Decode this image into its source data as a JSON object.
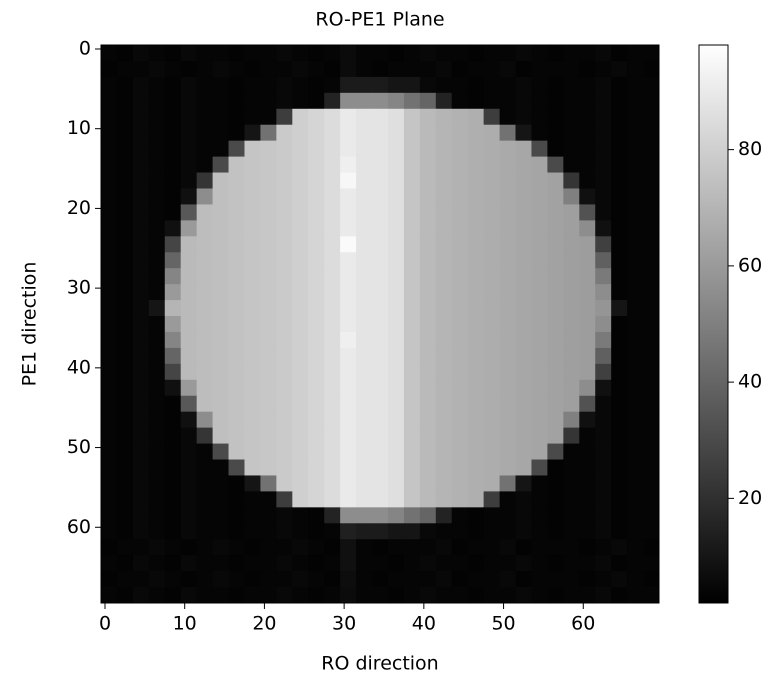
{
  "chart_data": {
    "type": "heatmap",
    "title": "RO-PE1 Plane",
    "x_label": "RO direction",
    "y_label": "PE1 direction",
    "colormap": "gray",
    "y_inverted": true,
    "xlim": [
      -0.5,
      69.5
    ],
    "ylim": [
      -0.5,
      69.5
    ],
    "xticks": [
      0,
      10,
      20,
      30,
      40,
      50,
      60
    ],
    "yticks": [
      0,
      10,
      20,
      30,
      40,
      50,
      60
    ],
    "clim": [
      2,
      98
    ],
    "cticks": [
      20,
      40,
      60,
      80
    ],
    "xbins": [
      -0.5,
      1.5,
      3.5,
      5.5,
      7.5,
      9.5,
      11.5,
      13.5,
      15.5,
      17.5,
      19.5,
      21.5,
      23.5,
      25.5,
      27.5,
      29.5,
      31.5,
      33.5,
      35.5,
      37.5,
      39.5,
      41.5,
      43.5,
      45.5,
      47.5,
      49.5,
      51.5,
      53.5,
      55.5,
      57.5,
      59.5,
      61.5,
      63.5,
      65.5,
      67.5,
      69.5
    ],
    "ybins": [
      -0.5,
      1.5,
      3.5,
      5.5,
      7.5,
      9.5,
      11.5,
      13.5,
      15.5,
      17.5,
      19.5,
      21.5,
      23.5,
      25.5,
      27.5,
      29.5,
      31.5,
      33.5,
      35.5,
      37.5,
      39.5,
      41.5,
      43.5,
      45.5,
      47.5,
      49.5,
      51.5,
      53.5,
      55.5,
      57.5,
      59.5,
      61.5,
      63.5,
      65.5,
      67.5,
      69.5
    ],
    "values": [
      [
        4,
        3,
        5,
        4,
        3,
        5,
        4,
        4,
        3,
        4,
        4,
        5,
        4,
        3,
        4,
        6,
        4,
        4,
        3,
        4,
        5,
        4,
        4,
        3,
        4,
        4,
        5,
        4,
        3,
        4,
        4,
        5,
        3,
        4,
        4
      ],
      [
        3,
        4,
        4,
        5,
        4,
        3,
        4,
        5,
        4,
        3,
        4,
        4,
        5,
        4,
        3,
        6,
        4,
        3,
        4,
        4,
        4,
        5,
        3,
        4,
        4,
        5,
        3,
        4,
        4,
        4,
        3,
        4,
        5,
        4,
        3
      ],
      [
        4,
        3,
        5,
        4,
        3,
        5,
        4,
        4,
        3,
        4,
        4,
        5,
        4,
        3,
        4,
        12,
        12,
        12,
        10,
        10,
        5,
        4,
        4,
        3,
        4,
        4,
        5,
        4,
        3,
        4,
        4,
        5,
        3,
        4,
        4
      ],
      [
        4,
        3,
        5,
        4,
        3,
        5,
        4,
        4,
        3,
        4,
        4,
        5,
        4,
        3,
        15,
        55,
        55,
        55,
        52,
        45,
        40,
        15,
        4,
        3,
        4,
        4,
        5,
        4,
        3,
        4,
        4,
        5,
        3,
        4,
        4
      ],
      [
        4,
        3,
        5,
        4,
        3,
        5,
        4,
        4,
        3,
        4,
        4,
        25,
        80,
        82,
        85,
        90,
        88,
        88,
        86,
        76,
        72,
        70,
        69,
        68,
        25,
        4,
        5,
        4,
        3,
        4,
        4,
        5,
        3,
        4,
        4
      ],
      [
        4,
        3,
        5,
        4,
        3,
        5,
        4,
        4,
        3,
        10,
        45,
        78,
        80,
        82,
        85,
        90,
        88,
        88,
        86,
        76,
        72,
        70,
        69,
        68,
        67,
        45,
        10,
        4,
        3,
        4,
        4,
        5,
        3,
        4,
        4
      ],
      [
        4,
        3,
        5,
        4,
        3,
        5,
        4,
        4,
        30,
        76,
        77,
        78,
        80,
        82,
        85,
        90,
        88,
        88,
        86,
        76,
        72,
        70,
        69,
        68,
        67,
        66,
        65,
        30,
        3,
        4,
        4,
        5,
        3,
        4,
        4
      ],
      [
        4,
        3,
        5,
        4,
        3,
        5,
        4,
        30,
        75,
        76,
        77,
        78,
        80,
        82,
        85,
        92,
        88,
        88,
        86,
        76,
        72,
        70,
        69,
        68,
        67,
        66,
        65,
        64,
        30,
        4,
        4,
        5,
        3,
        4,
        4
      ],
      [
        4,
        3,
        5,
        4,
        3,
        5,
        22,
        74,
        75,
        76,
        77,
        78,
        80,
        82,
        85,
        95,
        88,
        88,
        86,
        76,
        72,
        70,
        69,
        68,
        67,
        66,
        65,
        64,
        63,
        22,
        4,
        5,
        3,
        4,
        4
      ],
      [
        4,
        3,
        5,
        4,
        3,
        8,
        55,
        74,
        75,
        76,
        77,
        78,
        80,
        82,
        85,
        90,
        88,
        88,
        86,
        76,
        72,
        70,
        69,
        68,
        67,
        66,
        65,
        64,
        63,
        50,
        8,
        5,
        3,
        4,
        4
      ],
      [
        4,
        3,
        5,
        4,
        3,
        35,
        73,
        74,
        75,
        76,
        77,
        78,
        80,
        82,
        85,
        90,
        88,
        88,
        86,
        76,
        72,
        70,
        69,
        68,
        67,
        66,
        65,
        64,
        63,
        62,
        33,
        5,
        3,
        4,
        4
      ],
      [
        4,
        3,
        5,
        4,
        8,
        60,
        73,
        74,
        75,
        76,
        77,
        78,
        80,
        82,
        85,
        90,
        88,
        88,
        86,
        76,
        72,
        70,
        69,
        68,
        67,
        66,
        65,
        64,
        63,
        62,
        55,
        8,
        3,
        4,
        4
      ],
      [
        4,
        3,
        5,
        4,
        28,
        72,
        73,
        74,
        75,
        76,
        77,
        78,
        80,
        82,
        85,
        96,
        88,
        88,
        86,
        76,
        72,
        70,
        69,
        68,
        67,
        66,
        65,
        64,
        63,
        62,
        61,
        26,
        3,
        4,
        4
      ],
      [
        4,
        3,
        5,
        4,
        40,
        72,
        73,
        74,
        75,
        76,
        77,
        78,
        80,
        82,
        85,
        90,
        88,
        88,
        86,
        76,
        72,
        70,
        69,
        68,
        67,
        66,
        65,
        64,
        63,
        62,
        61,
        38,
        3,
        4,
        4
      ],
      [
        4,
        3,
        5,
        4,
        52,
        72,
        73,
        74,
        75,
        76,
        77,
        78,
        80,
        82,
        85,
        90,
        88,
        88,
        86,
        76,
        72,
        70,
        69,
        68,
        67,
        66,
        65,
        64,
        63,
        62,
        61,
        48,
        3,
        4,
        4
      ],
      [
        4,
        3,
        5,
        4,
        60,
        72,
        73,
        74,
        75,
        76,
        77,
        78,
        80,
        82,
        85,
        90,
        88,
        88,
        86,
        76,
        72,
        70,
        69,
        68,
        67,
        66,
        65,
        64,
        63,
        62,
        61,
        55,
        3,
        4,
        4
      ],
      [
        4,
        3,
        5,
        10,
        70,
        72,
        73,
        74,
        75,
        76,
        77,
        78,
        80,
        82,
        85,
        90,
        88,
        88,
        86,
        76,
        72,
        70,
        69,
        68,
        67,
        66,
        65,
        64,
        63,
        62,
        61,
        58,
        10,
        4,
        4
      ],
      [
        4,
        3,
        5,
        4,
        60,
        72,
        73,
        74,
        75,
        76,
        77,
        78,
        80,
        82,
        85,
        90,
        88,
        88,
        86,
        76,
        72,
        70,
        69,
        68,
        67,
        66,
        65,
        64,
        63,
        62,
        61,
        55,
        3,
        4,
        4
      ],
      [
        4,
        3,
        5,
        4,
        52,
        72,
        73,
        74,
        75,
        76,
        77,
        78,
        80,
        82,
        85,
        92,
        88,
        88,
        86,
        76,
        72,
        70,
        69,
        68,
        67,
        66,
        65,
        64,
        63,
        62,
        61,
        48,
        3,
        4,
        4
      ],
      [
        4,
        3,
        5,
        4,
        40,
        72,
        73,
        74,
        75,
        76,
        77,
        78,
        80,
        82,
        85,
        90,
        88,
        88,
        86,
        76,
        72,
        70,
        69,
        68,
        67,
        66,
        65,
        64,
        63,
        62,
        61,
        38,
        3,
        4,
        4
      ],
      [
        4,
        3,
        5,
        4,
        28,
        72,
        73,
        74,
        75,
        76,
        77,
        78,
        80,
        82,
        85,
        90,
        88,
        88,
        86,
        76,
        72,
        70,
        69,
        68,
        67,
        66,
        65,
        64,
        63,
        62,
        61,
        26,
        3,
        4,
        4
      ],
      [
        4,
        3,
        5,
        4,
        8,
        60,
        73,
        74,
        75,
        76,
        77,
        78,
        80,
        82,
        85,
        90,
        88,
        88,
        86,
        76,
        72,
        70,
        69,
        68,
        67,
        66,
        65,
        64,
        63,
        62,
        55,
        8,
        3,
        4,
        4
      ],
      [
        4,
        3,
        5,
        4,
        3,
        35,
        73,
        74,
        75,
        76,
        77,
        78,
        80,
        82,
        85,
        90,
        88,
        88,
        86,
        76,
        72,
        70,
        69,
        68,
        67,
        66,
        65,
        64,
        63,
        62,
        33,
        5,
        3,
        4,
        4
      ],
      [
        4,
        3,
        5,
        4,
        3,
        8,
        55,
        74,
        75,
        76,
        77,
        78,
        80,
        82,
        85,
        90,
        88,
        88,
        86,
        76,
        72,
        70,
        69,
        68,
        67,
        66,
        65,
        64,
        63,
        50,
        8,
        5,
        3,
        4,
        4
      ],
      [
        4,
        3,
        5,
        4,
        3,
        5,
        22,
        74,
        75,
        76,
        77,
        78,
        80,
        82,
        85,
        90,
        88,
        88,
        86,
        76,
        72,
        70,
        69,
        68,
        67,
        66,
        65,
        64,
        63,
        22,
        4,
        5,
        3,
        4,
        4
      ],
      [
        4,
        3,
        5,
        4,
        3,
        5,
        4,
        30,
        75,
        76,
        77,
        78,
        80,
        82,
        85,
        90,
        88,
        88,
        86,
        76,
        72,
        70,
        69,
        68,
        67,
        66,
        65,
        64,
        30,
        4,
        4,
        5,
        3,
        4,
        4
      ],
      [
        4,
        3,
        5,
        4,
        3,
        5,
        4,
        4,
        30,
        76,
        77,
        78,
        80,
        82,
        85,
        90,
        88,
        88,
        86,
        76,
        72,
        70,
        69,
        68,
        67,
        66,
        65,
        30,
        3,
        4,
        4,
        5,
        3,
        4,
        4
      ],
      [
        4,
        3,
        5,
        4,
        3,
        5,
        4,
        4,
        3,
        10,
        45,
        78,
        80,
        82,
        85,
        90,
        88,
        88,
        86,
        76,
        72,
        70,
        69,
        68,
        67,
        45,
        10,
        4,
        3,
        4,
        4,
        5,
        3,
        4,
        4
      ],
      [
        4,
        3,
        5,
        4,
        3,
        5,
        4,
        4,
        3,
        4,
        4,
        25,
        80,
        82,
        85,
        90,
        88,
        88,
        86,
        76,
        72,
        70,
        69,
        68,
        25,
        4,
        5,
        4,
        3,
        4,
        4,
        5,
        3,
        4,
        4
      ],
      [
        4,
        3,
        5,
        4,
        3,
        5,
        4,
        4,
        3,
        4,
        4,
        5,
        4,
        3,
        15,
        55,
        55,
        55,
        52,
        45,
        40,
        15,
        4,
        3,
        4,
        4,
        5,
        4,
        3,
        4,
        4,
        5,
        3,
        4,
        4
      ],
      [
        4,
        3,
        5,
        4,
        3,
        5,
        4,
        4,
        3,
        4,
        4,
        5,
        4,
        3,
        4,
        14,
        12,
        12,
        10,
        10,
        5,
        4,
        4,
        3,
        4,
        4,
        5,
        4,
        3,
        4,
        4,
        5,
        3,
        4,
        4
      ],
      [
        3,
        4,
        4,
        5,
        4,
        3,
        4,
        5,
        4,
        3,
        4,
        4,
        5,
        4,
        3,
        8,
        4,
        3,
        4,
        4,
        4,
        5,
        3,
        4,
        4,
        5,
        3,
        4,
        4,
        4,
        3,
        4,
        5,
        4,
        3
      ],
      [
        4,
        3,
        5,
        4,
        3,
        5,
        4,
        4,
        3,
        4,
        4,
        5,
        4,
        3,
        4,
        8,
        4,
        4,
        3,
        4,
        5,
        4,
        4,
        3,
        4,
        4,
        5,
        4,
        3,
        4,
        4,
        5,
        3,
        4,
        4
      ],
      [
        3,
        4,
        4,
        5,
        4,
        3,
        4,
        5,
        4,
        3,
        4,
        4,
        5,
        4,
        3,
        7,
        4,
        3,
        4,
        4,
        4,
        5,
        3,
        4,
        4,
        5,
        3,
        4,
        4,
        4,
        3,
        4,
        5,
        4,
        3
      ],
      [
        4,
        3,
        5,
        4,
        3,
        5,
        4,
        4,
        3,
        4,
        4,
        5,
        4,
        3,
        4,
        6,
        4,
        4,
        3,
        4,
        5,
        4,
        4,
        3,
        4,
        4,
        5,
        4,
        3,
        4,
        4,
        5,
        3,
        4,
        4
      ]
    ]
  }
}
